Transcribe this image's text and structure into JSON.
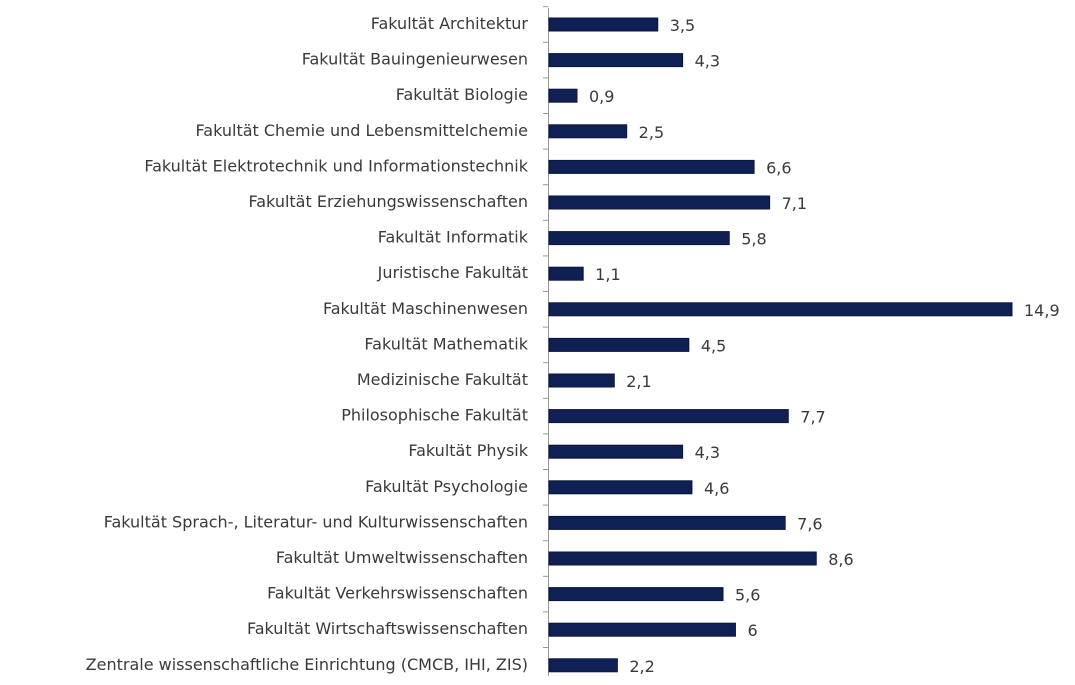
{
  "chart_data": {
    "type": "bar",
    "orientation": "horizontal",
    "categories": [
      "Fakultät Architektur",
      "Fakultät Bauingenieurwesen",
      "Fakultät Biologie",
      "Fakultät Chemie und Lebensmittelchemie",
      "Fakultät Elektrotechnik und Informationstechnik",
      "Fakultät Erziehungswissenschaften",
      "Fakultät Informatik",
      "Juristische Fakultät",
      "Fakultät Maschinenwesen",
      "Fakultät Mathematik",
      "Medizinische Fakultät",
      "Philosophische Fakultät",
      "Fakultät Physik",
      "Fakultät Psychologie",
      "Fakultät Sprach-, Literatur- und Kulturwissenschaften",
      "Fakultät Umweltwissenschaften",
      "Fakultät Verkehrswissenschaften",
      "Fakultät Wirtschaftswissenschaften",
      "Zentrale wissenschaftliche Einrichtung (CMCB, IHI, ZIS)"
    ],
    "values": [
      3.5,
      4.3,
      0.9,
      2.5,
      6.6,
      7.1,
      5.8,
      1.1,
      14.9,
      4.5,
      2.1,
      7.7,
      4.3,
      4.6,
      7.6,
      8.6,
      5.6,
      6,
      2.2
    ],
    "value_labels": [
      "3,5",
      "4,3",
      "0,9",
      "2,5",
      "6,6",
      "7,1",
      "5,8",
      "1,1",
      "14,9",
      "4,5",
      "2,1",
      "7,7",
      "4,3",
      "4,6",
      "7,6",
      "8,6",
      "5,6",
      "6",
      "2,2"
    ],
    "color": "#0f2055"
  }
}
